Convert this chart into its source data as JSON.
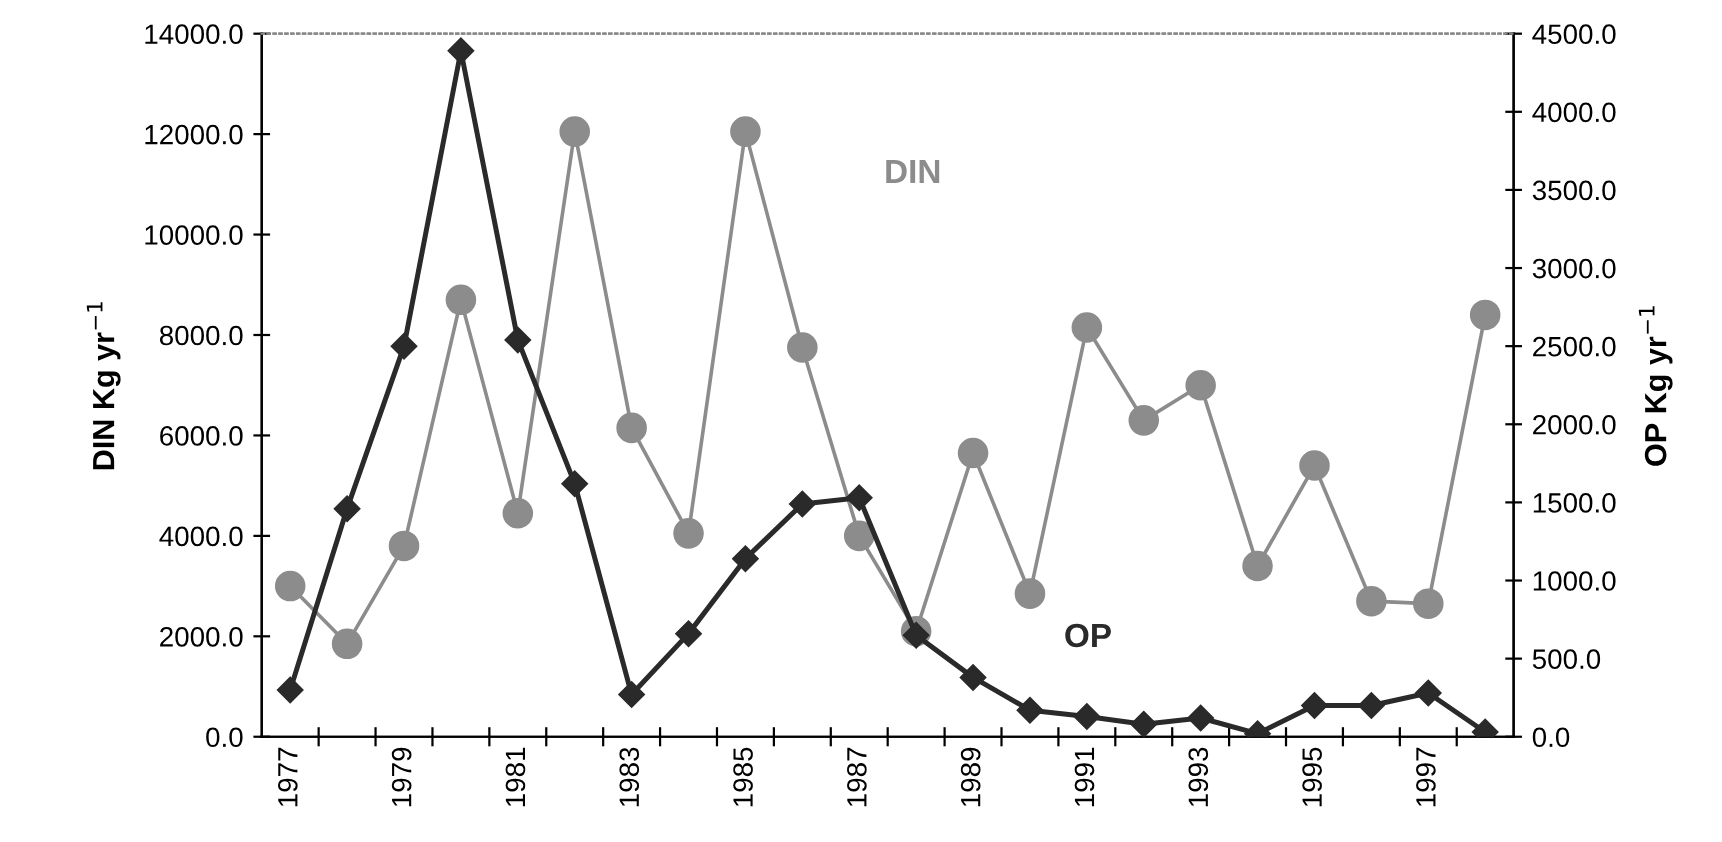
{
  "chart_data": {
    "type": "line",
    "categories": [
      "1977",
      null,
      "1979",
      null,
      "1981",
      null,
      "1983",
      null,
      "1985",
      null,
      "1987",
      null,
      "1989",
      null,
      "1991",
      null,
      "1993",
      null,
      "1995",
      null,
      "1997",
      null
    ],
    "ylabel": "DIN Kg yr$^{−1}$",
    "y2label": "OP Kg yr$^{−1}$",
    "ylim": [
      0,
      14000
    ],
    "yticks": [
      {
        "value": 0,
        "label": "0.0"
      },
      {
        "value": 2000,
        "label": "2000.0"
      },
      {
        "value": 4000,
        "label": "4000.0"
      },
      {
        "value": 6000,
        "label": "6000.0"
      },
      {
        "value": 8000,
        "label": "8000.0"
      },
      {
        "value": 10000,
        "label": "10000.0"
      },
      {
        "value": 12000,
        "label": "12000.0"
      },
      {
        "value": 14000,
        "label": "14000.0"
      }
    ],
    "y2lim": [
      0,
      4500
    ],
    "y2ticks": [
      {
        "value": 0,
        "label": "0.0"
      },
      {
        "value": 500,
        "label": "500.0"
      },
      {
        "value": 1000,
        "label": "1000.0"
      },
      {
        "value": 1500,
        "label": "1500.0"
      },
      {
        "value": 2000,
        "label": "2000.0"
      },
      {
        "value": 2500,
        "label": "2500.0"
      },
      {
        "value": 3000,
        "label": "3000.0"
      },
      {
        "value": 3500,
        "label": "3500.0"
      },
      {
        "value": 4000,
        "label": "4000.0"
      },
      {
        "value": 4500,
        "label": "4500.0"
      }
    ],
    "grid": false,
    "legend": false,
    "series": [
      {
        "name": "DIN",
        "color": "#8c8c8c",
        "marker": "circle",
        "values": [
          3000,
          1850,
          3800,
          8700,
          4450,
          12050,
          6150,
          4050,
          12050,
          7750,
          4000,
          2100,
          5650,
          2850,
          8150,
          6300,
          7000,
          3400,
          5400,
          2700,
          2650,
          8400
        ]
      },
      {
        "name": "OP",
        "color": "#2a2a2a",
        "marker": "diamond",
        "axis": "y2",
        "values": [
          300,
          1460,
          2500,
          4390,
          2540,
          1620,
          270,
          660,
          1140,
          1490,
          1530,
          650,
          380,
          170,
          130,
          80,
          120,
          20,
          200,
          200,
          280,
          30
        ]
      }
    ]
  }
}
